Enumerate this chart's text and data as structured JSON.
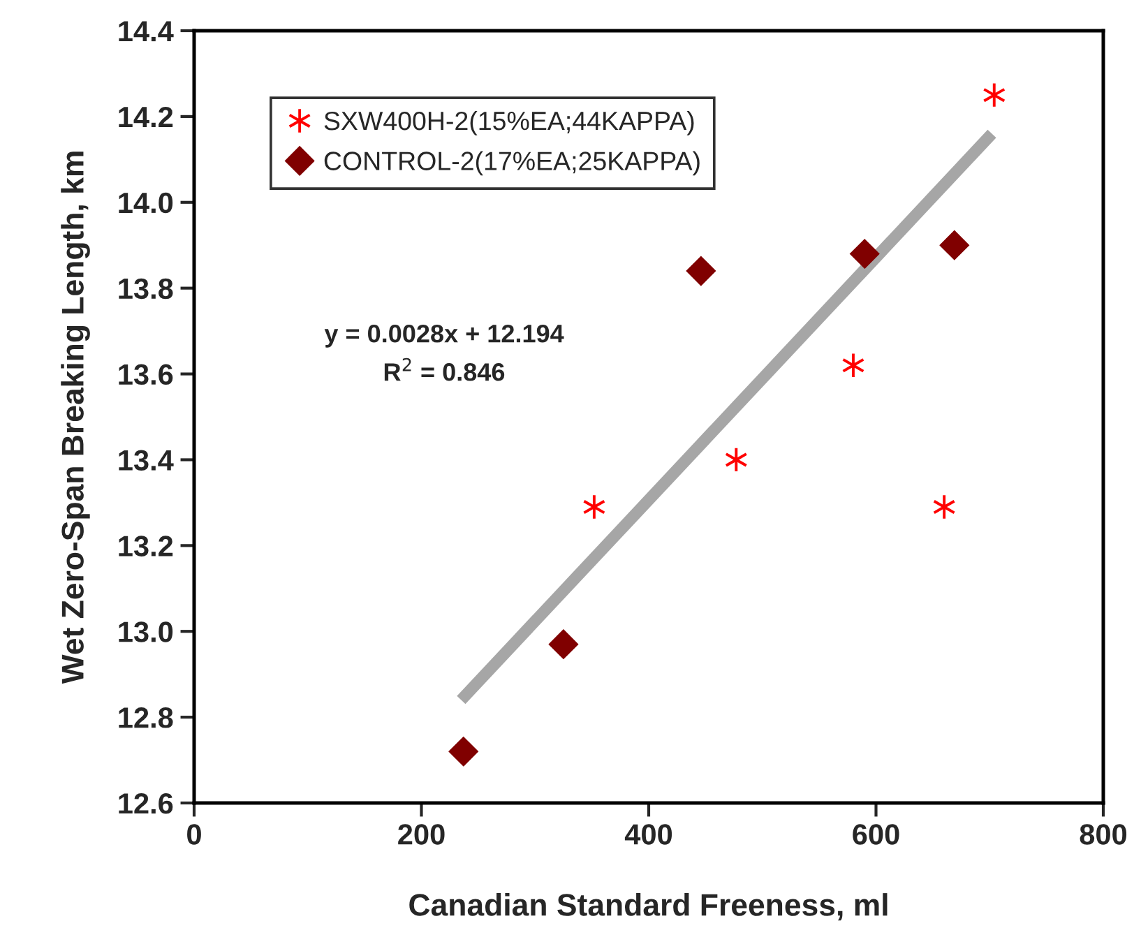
{
  "chart_data": {
    "type": "scatter",
    "xlabel": "Canadian Standard Freeness, ml",
    "ylabel": "Wet Zero-Span Breaking Length, km",
    "series": [
      {
        "name": "SXW400H-2(15%EA;44KAPPA)",
        "color": "#ff0000",
        "marker": "cross",
        "x": [
          352,
          477,
          580,
          660,
          704
        ],
        "values": [
          13.29,
          13.4,
          13.62,
          13.29,
          14.25
        ]
      },
      {
        "name": "CONTROL-2(17%EA;25KAPPA)",
        "color": "#800000",
        "marker": "diamond",
        "x": [
          237,
          325,
          446,
          590,
          669
        ],
        "values": [
          12.72,
          12.97,
          13.84,
          13.88,
          13.9
        ]
      },
      {
        "type": "line",
        "color": "#a6a6a6",
        "marker": "none",
        "x": [
          235,
          702
        ],
        "values": [
          12.84,
          14.16
        ]
      }
    ],
    "annotations": [
      "y = 0.0028x + 12.194",
      "R$^{2}$ = 0.846"
    ],
    "xlim": [
      0,
      800
    ],
    "xticks": [
      0,
      200,
      400,
      600,
      800
    ],
    "ylim": [
      12.6,
      14.4
    ],
    "yticks": [
      {
        "value": 12.6,
        "label": "12.6"
      },
      {
        "value": 12.8,
        "label": "12.8"
      },
      {
        "value": 13.0,
        "label": "13.0"
      },
      {
        "value": 13.2,
        "label": "13.2"
      },
      {
        "value": 13.4,
        "label": "13.4"
      },
      {
        "value": 13.6,
        "label": "13.6"
      },
      {
        "value": 13.8,
        "label": "13.8"
      },
      {
        "value": 14.0,
        "label": "14.0"
      },
      {
        "value": 14.2,
        "label": "14.2"
      },
      {
        "value": 14.4,
        "label": "14.4"
      }
    ],
    "grid": false,
    "legend": "top left"
  }
}
